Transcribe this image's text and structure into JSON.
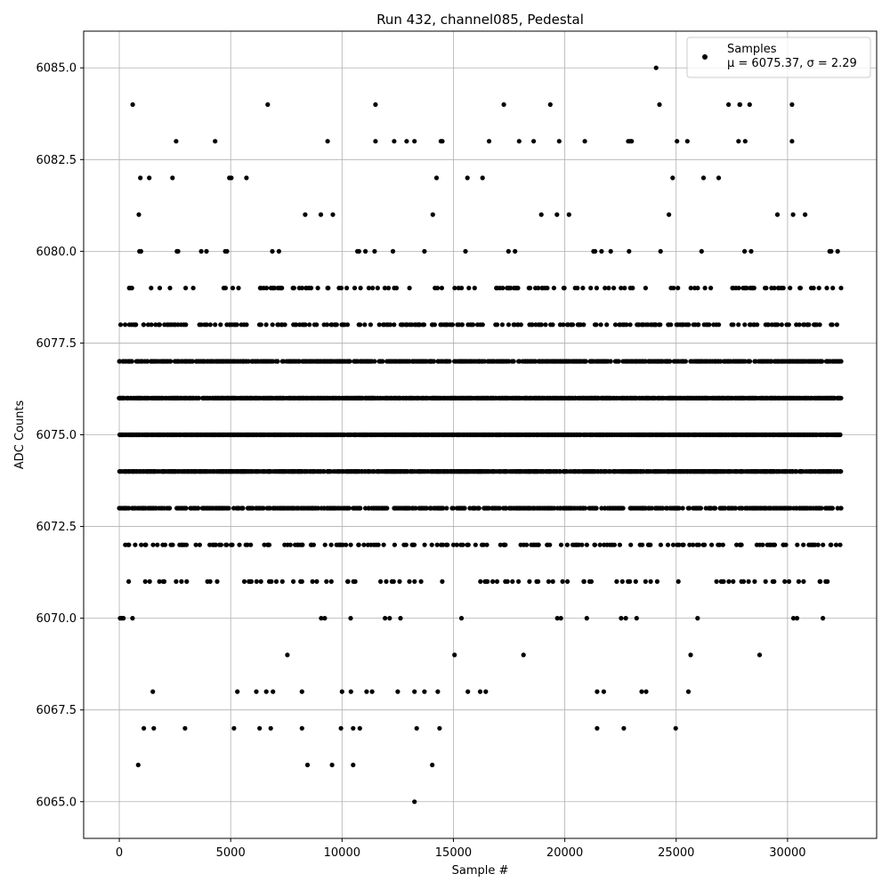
{
  "chart_data": {
    "type": "scatter",
    "title": "Run 432, channel085, Pedestal",
    "xlabel": "Sample #",
    "ylabel": "ADC Counts",
    "xlim": [
      -1600,
      34000
    ],
    "ylim": [
      6064.0,
      6086.0
    ],
    "xticks": [
      0,
      5000,
      10000,
      15000,
      20000,
      25000,
      30000
    ],
    "yticks": [
      6065.0,
      6067.5,
      6070.0,
      6072.5,
      6075.0,
      6077.5,
      6080.0,
      6082.5,
      6085.0
    ],
    "xtick_labels": [
      "0",
      "5000",
      "10000",
      "15000",
      "20000",
      "25000",
      "30000"
    ],
    "ytick_labels": [
      "6065.0",
      "6067.5",
      "6070.0",
      "6072.5",
      "6075.0",
      "6077.5",
      "6080.0",
      "6082.5",
      "6085.0"
    ],
    "grid": true,
    "legend_position": "top-right",
    "marker_color": "#000000",
    "series": [
      {
        "name": "Samples",
        "stats_label": "μ = 6075.37, σ = 2.29",
        "x_range": [
          0,
          32400
        ],
        "level_density": {
          "6065": 3e-05,
          "6066": 0.0002,
          "6067": 0.0006,
          "6068": 0.0012,
          "6069": 0.009,
          "6070": 0.03,
          "6071": 0.07,
          "6072": 0.14,
          "6073": 0.45,
          "6074": 0.7,
          "6075": 0.78,
          "6076": 0.7,
          "6077": 0.45,
          "6078": 0.18,
          "6079": 0.08,
          "6080": 0.035,
          "6081": 0.013,
          "6082": 0.004,
          "6083": 0.001,
          "6084": 0.0004,
          "6085": 3e-05
        },
        "highlight_points": [
          [
            13250,
            6065
          ],
          [
            850,
            6066
          ],
          [
            8450,
            6066
          ],
          [
            9550,
            6066
          ],
          [
            10500,
            6066
          ],
          [
            14050,
            6066
          ],
          [
            600,
            6084
          ],
          [
            11500,
            6084
          ],
          [
            19350,
            6084
          ],
          [
            24250,
            6084
          ],
          [
            27350,
            6084
          ],
          [
            27850,
            6084
          ],
          [
            28300,
            6084
          ],
          [
            30200,
            6084
          ],
          [
            24100,
            6085
          ],
          [
            2550,
            6083
          ],
          [
            4300,
            6083
          ],
          [
            9350,
            6083
          ],
          [
            11500,
            6083
          ],
          [
            12900,
            6083
          ],
          [
            13250,
            6083
          ],
          [
            14500,
            6083
          ],
          [
            16600,
            6083
          ],
          [
            17950,
            6083
          ],
          [
            18600,
            6083
          ],
          [
            19750,
            6083
          ],
          [
            20900,
            6083
          ],
          [
            22850,
            6083
          ],
          [
            23000,
            6083
          ],
          [
            25500,
            6083
          ],
          [
            27800,
            6083
          ],
          [
            28100,
            6083
          ],
          [
            30200,
            6083
          ],
          [
            1100,
            6067
          ],
          [
            1550,
            6067
          ],
          [
            2950,
            6067
          ],
          [
            5150,
            6067
          ],
          [
            6300,
            6067
          ],
          [
            6800,
            6067
          ],
          [
            8200,
            6067
          ],
          [
            9950,
            6067
          ],
          [
            10500,
            6067
          ],
          [
            10800,
            6067
          ],
          [
            13350,
            6067
          ],
          [
            21450,
            6067
          ],
          [
            22650,
            6067
          ],
          [
            5300,
            6068
          ],
          [
            6150,
            6068
          ],
          [
            6600,
            6068
          ],
          [
            6900,
            6068
          ],
          [
            8200,
            6068
          ],
          [
            10000,
            6068
          ],
          [
            10400,
            6068
          ],
          [
            11100,
            6068
          ],
          [
            11350,
            6068
          ],
          [
            12500,
            6068
          ],
          [
            13250,
            6068
          ],
          [
            13700,
            6068
          ],
          [
            14300,
            6068
          ],
          [
            15650,
            6068
          ],
          [
            16200,
            6068
          ],
          [
            16450,
            6068
          ],
          [
            21450,
            6068
          ],
          [
            21750,
            6068
          ],
          [
            23450,
            6068
          ],
          [
            23650,
            6068
          ],
          [
            25550,
            6068
          ]
        ]
      }
    ]
  }
}
